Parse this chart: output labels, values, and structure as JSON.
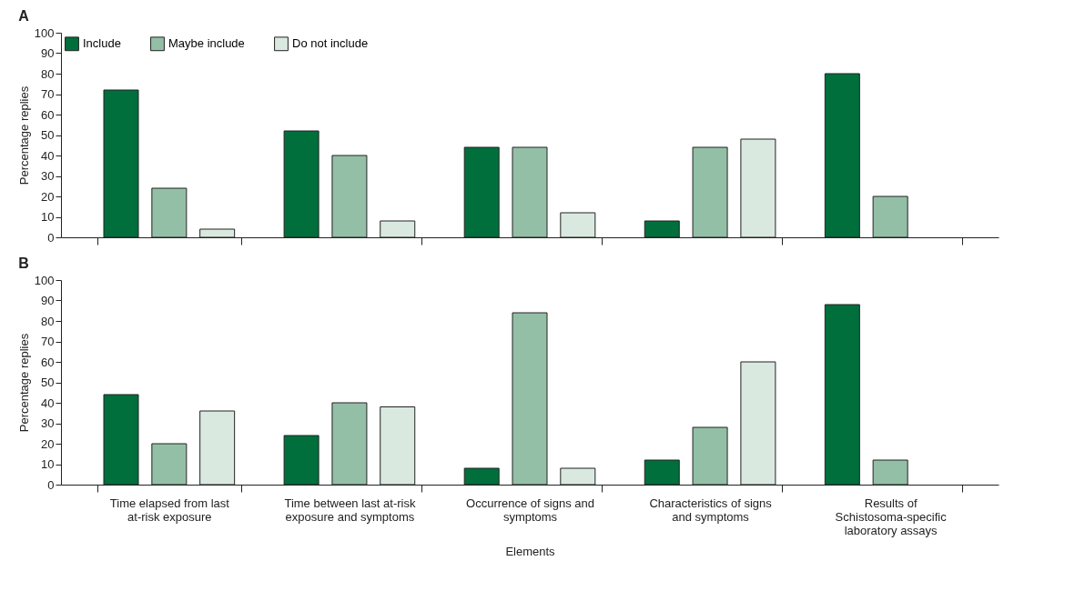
{
  "chart_data": [
    {
      "type": "bar",
      "title": "A",
      "ylabel": "Percentage replies",
      "categories": [
        null,
        null,
        null,
        null,
        null
      ],
      "series": [
        {
          "name": "Include",
          "color": "#006f3c",
          "values": [
            72,
            52,
            44,
            8,
            80
          ]
        },
        {
          "name": "Maybe include",
          "color": "#93bfa6",
          "values": [
            24,
            40,
            44,
            44,
            20
          ]
        },
        {
          "name": "Do not include",
          "color": "#d9e9e0",
          "values": [
            4,
            8,
            12,
            48,
            0
          ]
        }
      ],
      "ylim": [
        0,
        100
      ],
      "yticks": [
        0,
        10,
        20,
        30,
        40,
        50,
        60,
        70,
        80,
        90,
        100
      ],
      "grid": false,
      "legend": "top left",
      "tick_labels": "y"
    },
    {
      "type": "bar",
      "title": "B",
      "ylabel": "Percentage replies",
      "xlabel": "Elements",
      "categories": [
        "Time elapsed from last at-risk exposure",
        "Time between last at-risk exposure and symptoms",
        "Occurrence of signs and symptoms",
        "Characteristics of signs and symptoms",
        "Results of Schistosoma-specific laboratory assays"
      ],
      "series": [
        {
          "name": "Include",
          "color": "#006f3c",
          "values": [
            44,
            24,
            8,
            12,
            88
          ]
        },
        {
          "name": "Maybe include",
          "color": "#93bfa6",
          "values": [
            20,
            40,
            84,
            28,
            12
          ]
        },
        {
          "name": "Do not include",
          "color": "#d9e9e0",
          "values": [
            36,
            38,
            8,
            60,
            0
          ]
        }
      ],
      "ylim": [
        0,
        100
      ],
      "yticks": [
        0,
        10,
        20,
        30,
        40,
        50,
        60,
        70,
        80,
        90,
        100
      ],
      "grid": false,
      "legend": false
    }
  ]
}
